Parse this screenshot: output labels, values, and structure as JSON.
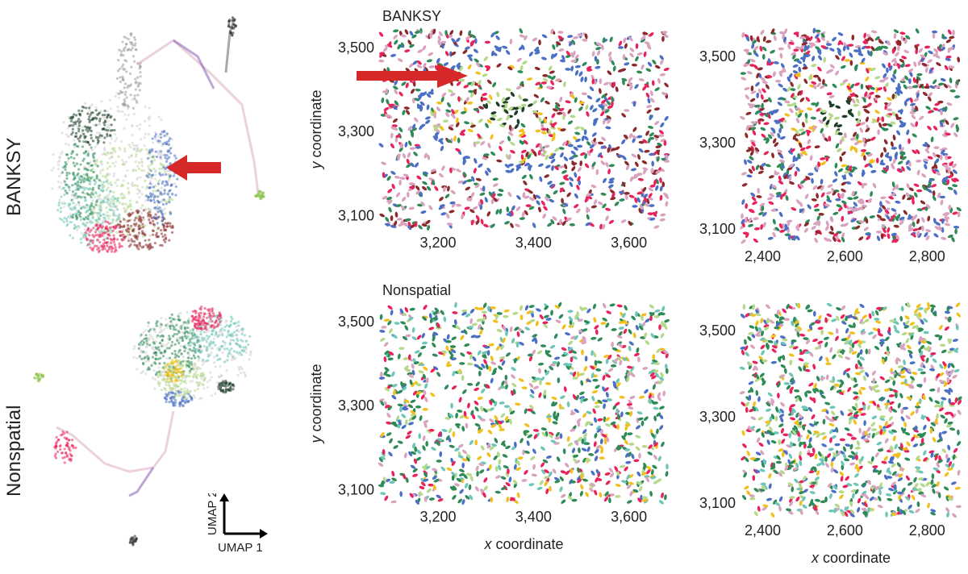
{
  "rows": [
    {
      "label": "BANKSY"
    },
    {
      "label": "Nonspatial"
    }
  ],
  "umap_axes": {
    "x_label": "UMAP 1",
    "y_label": "UMAP 2"
  },
  "palette": [
    "#4a6fc4",
    "#8b2a2a",
    "#d9a3c0",
    "#2e8b57",
    "#b5d98a",
    "#e8225a",
    "#f2c01e",
    "#1f3f2a",
    "#6ec6b8",
    "#7b4fb0",
    "#222222"
  ],
  "chart_data": [
    {
      "type": "scatter",
      "panel": "banksy-region-1",
      "title": "BANKSY",
      "xlabel": "",
      "ylabel": "y coordinate",
      "xlim": [
        3080,
        3680
      ],
      "ylim": [
        3070,
        3540
      ],
      "xticks": [
        "3,200",
        "3,400",
        "3,600"
      ],
      "xtick_values": [
        3200,
        3400,
        3600
      ],
      "yticks": [
        "3,100",
        "3,300",
        "3,500"
      ],
      "ytick_values": [
        3100,
        3300,
        3500
      ]
    },
    {
      "type": "scatter",
      "panel": "banksy-region-2",
      "title": "",
      "xlabel": "",
      "ylabel": "",
      "xlim": [
        2350,
        2880
      ],
      "ylim": [
        3070,
        3560
      ],
      "xticks": [
        "2,400",
        "2,600",
        "2,800"
      ],
      "xtick_values": [
        2400,
        2600,
        2800
      ],
      "yticks": [
        "3,100",
        "3,300",
        "3,500"
      ],
      "ytick_values": [
        3100,
        3300,
        3500
      ]
    },
    {
      "type": "scatter",
      "panel": "nonspatial-region-1",
      "title": "Nonspatial",
      "xlabel": "x coordinate",
      "ylabel": "y coordinate",
      "xlim": [
        3080,
        3680
      ],
      "ylim": [
        3070,
        3540
      ],
      "xticks": [
        "3,200",
        "3,400",
        "3,600"
      ],
      "xtick_values": [
        3200,
        3400,
        3600
      ],
      "yticks": [
        "3,100",
        "3,300",
        "3,500"
      ],
      "ytick_values": [
        3100,
        3300,
        3500
      ]
    },
    {
      "type": "scatter",
      "panel": "nonspatial-region-2",
      "title": "",
      "xlabel": "x coordinate",
      "ylabel": "",
      "xlim": [
        2350,
        2880
      ],
      "ylim": [
        3070,
        3560
      ],
      "xticks": [
        "2,400",
        "2,600",
        "2,800"
      ],
      "xtick_values": [
        2400,
        2600,
        2800
      ],
      "yticks": [
        "3,100",
        "3,300",
        "3,500"
      ],
      "ytick_values": [
        3100,
        3300,
        3500
      ]
    }
  ]
}
